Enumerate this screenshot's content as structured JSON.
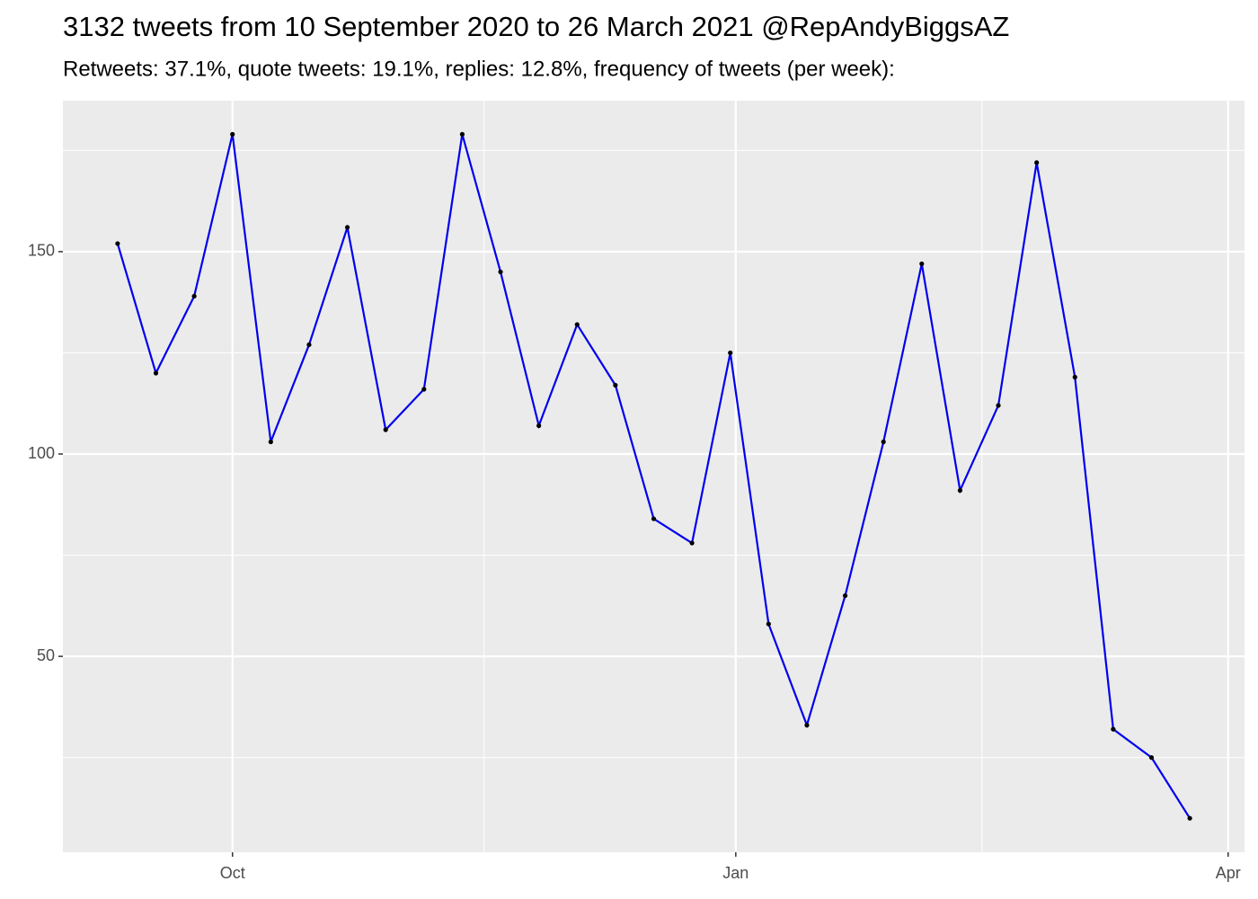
{
  "chart_data": {
    "type": "line",
    "title": "3132 tweets from 10 September 2020 to 26 March 2021 @RepAndyBiggsAZ",
    "subtitle": "Retweets: 37.1%, quote tweets: 19.1%, replies: 12.8%, frequency of tweets (per week):",
    "x": [
      "2020-09-10",
      "2020-09-17",
      "2020-09-24",
      "2020-10-01",
      "2020-10-08",
      "2020-10-15",
      "2020-10-22",
      "2020-10-29",
      "2020-11-05",
      "2020-11-12",
      "2020-11-19",
      "2020-11-26",
      "2020-12-03",
      "2020-12-10",
      "2020-12-17",
      "2020-12-24",
      "2020-12-31",
      "2021-01-07",
      "2021-01-14",
      "2021-01-21",
      "2021-01-28",
      "2021-02-04",
      "2021-02-11",
      "2021-02-18",
      "2021-02-25",
      "2021-03-04",
      "2021-03-11",
      "2021-03-18",
      "2021-03-25"
    ],
    "values": [
      152,
      120,
      139,
      179,
      103,
      127,
      156,
      106,
      116,
      179,
      145,
      107,
      132,
      117,
      84,
      78,
      125,
      58,
      33,
      65,
      103,
      147,
      91,
      112,
      172,
      119,
      32,
      25,
      10
    ],
    "color": "#0000ee",
    "point_color": "#000000",
    "xlim": [
      "2020-08-31",
      "2021-04-04"
    ],
    "xticks": [
      {
        "value": "2020-10-01",
        "label": "Oct"
      },
      {
        "value": "2021-01-01",
        "label": "Jan"
      },
      {
        "value": "2021-04-01",
        "label": "Apr"
      }
    ],
    "ylim": [
      1.6,
      187.3
    ],
    "yticks": [
      50,
      100,
      150
    ],
    "grid": true
  }
}
